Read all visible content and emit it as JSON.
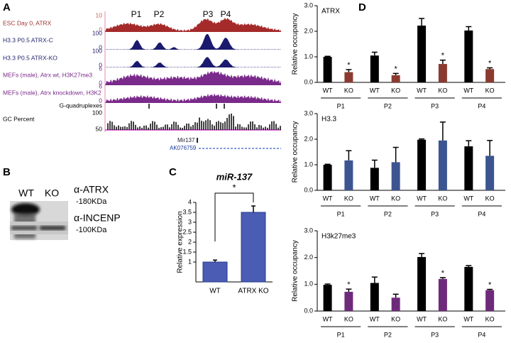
{
  "panel_labels": [
    "A",
    "B",
    "C",
    "D"
  ],
  "browser": {
    "peaks": [
      "P1",
      "P2",
      "P3",
      "P4"
    ],
    "tracks": [
      {
        "label": "ESC Day 0, ATRX",
        "scale": [
          10,
          0
        ]
      },
      {
        "label": "H3.3 P0.5 ATRX-C",
        "scale": [
          100,
          0
        ]
      },
      {
        "label": "H3.3 P0.5 ATRX-KO",
        "scale": [
          100,
          0
        ]
      },
      {
        "label": "MEFs (male), Atrx wt, H3K27me3",
        "scale": [
          6,
          0
        ]
      },
      {
        "label": "MEFs (male), Atrx knockdown, H3K2",
        "scale": [
          6,
          0
        ]
      }
    ],
    "gquad": "G-quadruplexes",
    "gc": {
      "label": "GC Percent",
      "scale": [
        100,
        50
      ]
    },
    "genes": [
      "Mir137",
      "AK076759"
    ]
  },
  "blot": {
    "lanes": [
      "WT",
      "KO"
    ],
    "antibodies": [
      {
        "label": "α-ATRX",
        "size": "-180KDa"
      },
      {
        "label": "α-INCENP",
        "size": "-100KDa"
      }
    ]
  },
  "chart_data": [
    {
      "type": "bar",
      "title": "miR-137",
      "y_label": "Relative  expression",
      "categories": [
        "WT",
        "ATRX KO"
      ],
      "values": [
        1.0,
        3.5
      ],
      "errors": [
        0.1,
        0.32
      ],
      "color": "#4a5cb4",
      "annotation": "*",
      "ylim": [
        0,
        4
      ],
      "yticks": [
        1,
        1.5,
        2,
        2.5,
        3,
        3.5,
        4
      ]
    },
    {
      "type": "grouped_bar",
      "title": "ATRX",
      "y_label": "Relative occupancy",
      "categories": [
        "P1",
        "P2",
        "P3",
        "P4"
      ],
      "series": [
        {
          "name": "WT",
          "color": "#000000",
          "values": [
            1.0,
            1.05,
            2.22,
            2.03
          ],
          "errors": [
            0.02,
            0.13,
            0.28,
            0.15
          ]
        },
        {
          "name": "KO",
          "color": "#8b3a2f",
          "values": [
            0.4,
            0.28,
            0.72,
            0.52
          ],
          "errors": [
            0.1,
            0.07,
            0.15,
            0.05
          ],
          "significance": [
            "*",
            "*",
            "*",
            "*"
          ]
        }
      ],
      "ylim": [
        0,
        3
      ],
      "yticks": [
        {
          "value": 0,
          "label": "0.0"
        },
        {
          "value": 1,
          "label": "1.0"
        },
        {
          "value": 2,
          "label": "2.0"
        },
        {
          "value": 3,
          "label": "3.0"
        }
      ]
    },
    {
      "type": "grouped_bar",
      "title": "H3.3",
      "y_label": "Relative occupancy",
      "categories": [
        "P1",
        "P2",
        "P3",
        "P4"
      ],
      "series": [
        {
          "name": "WT",
          "color": "#000000",
          "values": [
            1.0,
            0.88,
            1.98,
            1.72
          ],
          "errors": [
            0.02,
            0.3,
            0.03,
            0.22
          ]
        },
        {
          "name": "KO",
          "color": "#3c5591",
          "values": [
            1.17,
            1.1,
            1.95,
            1.35
          ],
          "errors": [
            0.38,
            0.58,
            0.72,
            0.6
          ]
        }
      ],
      "ylim": [
        0,
        3
      ],
      "yticks": [
        {
          "value": 0,
          "label": "0.0"
        },
        {
          "value": 1,
          "label": "1.0"
        },
        {
          "value": 2,
          "label": "2.0"
        },
        {
          "value": 3,
          "label": "3.0"
        }
      ]
    },
    {
      "type": "grouped_bar",
      "title": "H3k27me3",
      "y_label": "Relative occupancy",
      "categories": [
        "P1",
        "P2",
        "P3",
        "P4"
      ],
      "series": [
        {
          "name": "WT",
          "color": "#000000",
          "values": [
            0.98,
            1.05,
            2.02,
            1.65
          ],
          "errors": [
            0.03,
            0.22,
            0.13,
            0.05
          ]
        },
        {
          "name": "KO",
          "color": "#6e2a7a",
          "values": [
            0.72,
            0.5,
            1.2,
            0.78
          ],
          "errors": [
            0.1,
            0.13,
            0.05,
            0.03
          ],
          "significance": [
            "*",
            null,
            "*",
            "*"
          ]
        }
      ],
      "ylim": [
        0,
        3
      ],
      "yticks": [
        {
          "value": 0,
          "label": "0.0"
        },
        {
          "value": 1,
          "label": "1.0"
        },
        {
          "value": 2,
          "label": "2.0"
        },
        {
          "value": 3,
          "label": "3.0"
        }
      ]
    }
  ]
}
